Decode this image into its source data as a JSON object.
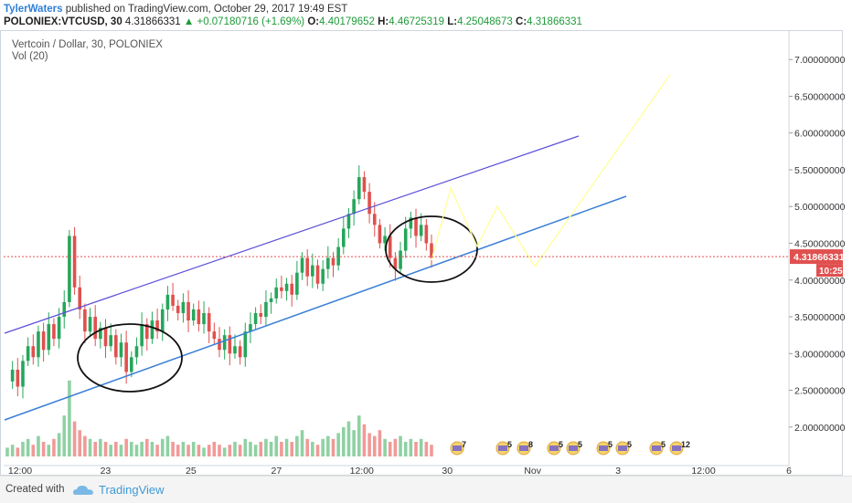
{
  "header": {
    "author": "TylerWaters",
    "published_text": "published on TradingView.com, October 29, 2017 19:49 EST",
    "symbol": "POLONIEX:VTCUSD, 30",
    "last": "4.31866331",
    "change_arrow": "▲",
    "change": "+0.07180716 (+1.69%)",
    "o_label": "O:",
    "o": "4.40179652",
    "h_label": "H:",
    "h": "4.46725319",
    "l_label": "L:",
    "l": "4.25048673",
    "c_label": "C:",
    "c": "4.31866331"
  },
  "legend": {
    "title": "Vertcoin / Dollar, 30, POLONIEX",
    "volume": "Vol (20)"
  },
  "footer": {
    "created_with": "Created with",
    "brand": "TradingView"
  },
  "colors": {
    "up": "#26a65b",
    "down": "#e0504d",
    "channel_upper": "#5b4fd9",
    "channel_lower": "#3a7fd6",
    "projection": "#ffff99",
    "price_line": "#e05050"
  },
  "chart_data": {
    "type": "candlestick",
    "x_ticks": [
      "12:00",
      "23",
      "25",
      "27",
      "12:00",
      "30",
      "Nov",
      "3",
      "12:00",
      "6"
    ],
    "y_ticks": [
      "7.00000000",
      "6.50000000",
      "6.00000000",
      "5.50000000",
      "5.00000000",
      "4.50000000",
      "4.00000000",
      "3.50000000",
      "3.00000000",
      "2.50000000",
      "2.00000000"
    ],
    "ylim": [
      1.6,
      7.4
    ],
    "current_price": {
      "value": 4.31866331,
      "label": "4.31866331",
      "countdown": "10:25"
    },
    "price_path": [
      2.62,
      2.78,
      2.55,
      2.9,
      3.1,
      2.95,
      3.3,
      3.05,
      3.4,
      3.2,
      3.5,
      3.7,
      4.6,
      3.9,
      3.6,
      3.3,
      3.5,
      3.2,
      3.35,
      3.1,
      3.25,
      2.95,
      3.15,
      2.75,
      2.95,
      3.1,
      3.4,
      3.2,
      3.45,
      3.3,
      3.6,
      3.8,
      3.65,
      3.55,
      3.7,
      3.45,
      3.6,
      3.4,
      3.55,
      3.3,
      3.2,
      3.05,
      3.25,
      3.0,
      3.1,
      2.95,
      3.3,
      3.4,
      3.55,
      3.5,
      3.7,
      3.75,
      3.9,
      3.85,
      3.95,
      3.8,
      4.1,
      4.3,
      4.05,
      4.2,
      3.95,
      4.15,
      4.3,
      4.2,
      4.45,
      4.7,
      4.9,
      5.1,
      5.4,
      5.2,
      4.9,
      4.75,
      4.5,
      4.6,
      4.3,
      4.15,
      4.4,
      4.7,
      4.85,
      4.6,
      4.75,
      4.5,
      4.3
    ],
    "volume_path": [
      3,
      4,
      3,
      5,
      6,
      4,
      7,
      5,
      4,
      6,
      8,
      14,
      26,
      12,
      9,
      7,
      6,
      5,
      6,
      5,
      4,
      5,
      4,
      6,
      5,
      4,
      5,
      6,
      5,
      4,
      6,
      7,
      5,
      4,
      5,
      4,
      5,
      4,
      3,
      4,
      5,
      4,
      3,
      4,
      5,
      4,
      6,
      5,
      4,
      5,
      6,
      5,
      7,
      5,
      6,
      5,
      7,
      9,
      6,
      5,
      4,
      6,
      7,
      6,
      8,
      10,
      12,
      9,
      14,
      11,
      8,
      7,
      9,
      6,
      5,
      6,
      7,
      5,
      6,
      5,
      6,
      5,
      4
    ],
    "event_badges": [
      "7",
      "5",
      "8",
      "5",
      "5",
      "5",
      "5",
      "5",
      "12"
    ]
  }
}
